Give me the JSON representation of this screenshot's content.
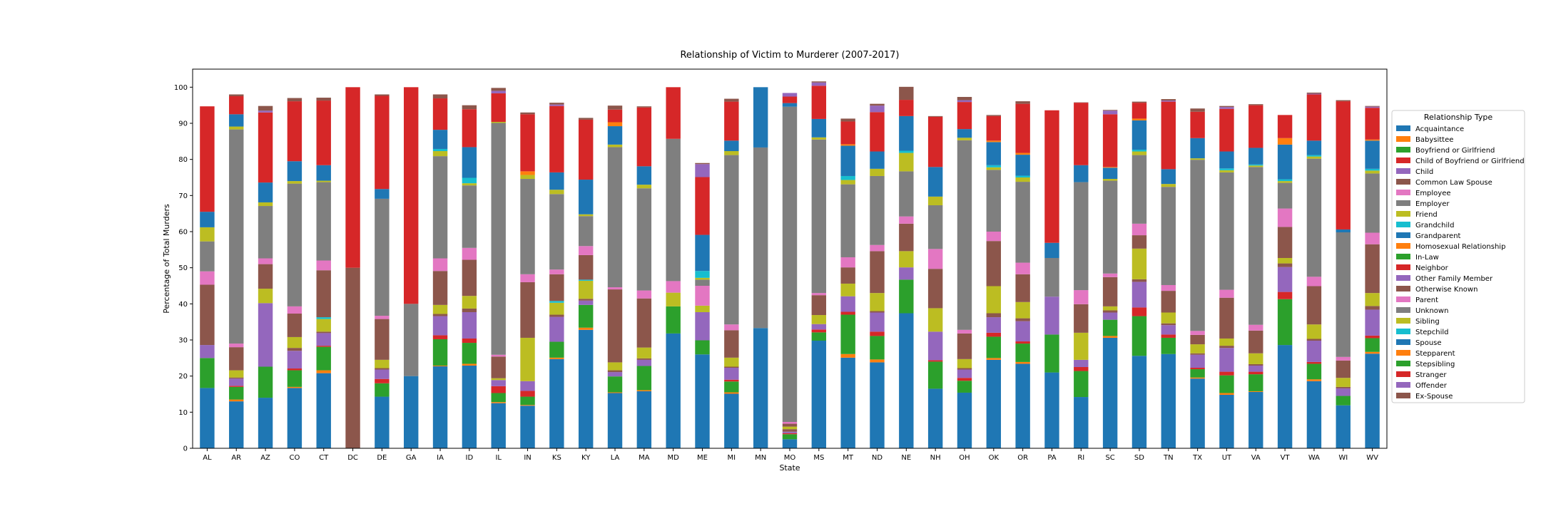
{
  "chart_data": {
    "type": "bar",
    "stacked": true,
    "title": "Relationship of Victim to Murderer (2007-2017)",
    "xlabel": "State",
    "ylabel": "Percentage of Total Murders",
    "ylim": [
      0,
      105
    ],
    "yticks": [
      0,
      10,
      20,
      30,
      40,
      50,
      60,
      70,
      80,
      90,
      100
    ],
    "grid": false,
    "legend": {
      "title": "Relationship Type",
      "placement": "right"
    },
    "categories": [
      "AL",
      "AR",
      "AZ",
      "CO",
      "CT",
      "DC",
      "DE",
      "GA",
      "IA",
      "ID",
      "IL",
      "IN",
      "KS",
      "KY",
      "LA",
      "MA",
      "MD",
      "ME",
      "MI",
      "MN",
      "MO",
      "MS",
      "MT",
      "ND",
      "NE",
      "NH",
      "OH",
      "OK",
      "OR",
      "PA",
      "RI",
      "SC",
      "SD",
      "TN",
      "TX",
      "UT",
      "VA",
      "VT",
      "WA",
      "WI",
      "WV"
    ],
    "series": [
      {
        "name": "Acquaintance",
        "color": "#1f77b4",
        "values": [
          16.7,
          13,
          14,
          16.7,
          20.8,
          0,
          14.3,
          20,
          22.7,
          22.9,
          12.5,
          11.8,
          24.7,
          32.8,
          15.3,
          15.8,
          31.8,
          26,
          15.1,
          33.3,
          2.5,
          29.8,
          25.1,
          23.8,
          37.4,
          16.5,
          15.4,
          24.5,
          23.4,
          21,
          14.2,
          30.6,
          25.6,
          26.1,
          19.3,
          14.8,
          15.6,
          28.6,
          18.6,
          11.9,
          26.2
        ]
      },
      {
        "name": "Babysittee",
        "color": "#ff7f0e",
        "values": [
          0,
          0.5,
          0,
          0.3,
          0.8,
          0,
          0,
          0,
          0.2,
          0.5,
          0.3,
          0.2,
          0.4,
          0.6,
          0.2,
          0.3,
          0,
          0,
          0.4,
          0,
          0,
          0,
          1,
          0.8,
          0,
          0,
          0,
          0.5,
          0.5,
          0,
          0,
          0.5,
          0,
          0,
          0.3,
          0.5,
          0.2,
          0,
          0.5,
          0,
          0.5
        ]
      },
      {
        "name": "Boyfriend or Girlfriend",
        "color": "#2ca02c",
        "values": [
          8.3,
          3.5,
          8.6,
          4.6,
          6.5,
          0,
          3.7,
          0,
          7.3,
          5.8,
          2.5,
          2.3,
          4.4,
          6.3,
          4.4,
          6.7,
          7.5,
          3.9,
          3,
          0,
          1.4,
          2.3,
          10.9,
          6.5,
          9.3,
          7.5,
          3.3,
          5.9,
          5.1,
          10.5,
          7.2,
          4.5,
          11,
          4.5,
          2.3,
          4.9,
          4.7,
          12.7,
          4.3,
          2.6,
          3.8
        ]
      },
      {
        "name": "Child of Boyfriend or Girlfriend",
        "color": "#d62728",
        "values": [
          0,
          0.3,
          0,
          0.5,
          0.3,
          0,
          1.2,
          0,
          1.1,
          1.2,
          1.9,
          1.6,
          0,
          0,
          0,
          0,
          0,
          0,
          0.5,
          0,
          0.3,
          0.8,
          0.8,
          1.2,
          0,
          0.4,
          0.8,
          1.1,
          0.6,
          0,
          1.1,
          0,
          2.4,
          0.9,
          0.4,
          1,
          0.7,
          2,
          0.5,
          0,
          0.7
        ]
      },
      {
        "name": "Child",
        "color": "#9467bd",
        "values": [
          3.6,
          2,
          17.6,
          4.9,
          3.5,
          0,
          2.6,
          0,
          5.3,
          7.3,
          1.7,
          2.7,
          6.9,
          1.2,
          1.2,
          1.7,
          0,
          7.8,
          3.3,
          0,
          0.4,
          1.5,
          4.3,
          5.3,
          3.4,
          7.9,
          2.3,
          4.3,
          5.6,
          10.5,
          2,
          2,
          7.1,
          2.6,
          3.6,
          6.6,
          1.7,
          6.9,
          5.9,
          2.1,
          7.2
        ]
      },
      {
        "name": "Common Law Spouse",
        "color": "#8c564b",
        "values": [
          0,
          0.3,
          0,
          0.8,
          0.4,
          0,
          0.4,
          0,
          0.6,
          1,
          0,
          0,
          0.6,
          0.5,
          0.5,
          0.4,
          0,
          0,
          0.3,
          0,
          0.7,
          0,
          0,
          0.4,
          0,
          0,
          0.4,
          1.1,
          0.8,
          0,
          0,
          0.6,
          0.7,
          0.5,
          0.4,
          0.6,
          0.4,
          1,
          0.5,
          0.4,
          1
        ]
      },
      {
        "name": "Employee",
        "color": "#e377c2",
        "values": [
          0,
          0,
          0,
          0,
          0,
          0,
          0,
          0,
          0,
          0,
          0,
          0,
          0,
          0,
          0,
          0,
          0,
          0,
          0,
          0,
          0,
          0,
          0,
          0,
          0,
          0,
          0,
          0,
          0,
          0,
          0,
          0,
          0,
          0,
          0,
          0,
          0,
          0,
          0,
          0,
          0
        ]
      },
      {
        "name": "Employer",
        "color": "#7f7f7f",
        "values": [
          0,
          0,
          0,
          0,
          0,
          0,
          0,
          0,
          0,
          0,
          0,
          0,
          0,
          0,
          0,
          0,
          0,
          0,
          0,
          0,
          0,
          0,
          0,
          0,
          0,
          0,
          0,
          0,
          0,
          0,
          0,
          0,
          0,
          0,
          0,
          0,
          0,
          0,
          0,
          0,
          0
        ]
      },
      {
        "name": "Friend",
        "color": "#bcbd22",
        "values": [
          0,
          2,
          4,
          3,
          3.5,
          0,
          2.3,
          0,
          2.5,
          3.5,
          0.5,
          12,
          3.3,
          5,
          2.2,
          3,
          3.8,
          1.8,
          2.5,
          0,
          0.7,
          2.5,
          3.5,
          5,
          4.5,
          6.5,
          2.5,
          7.5,
          4.5,
          0,
          7.5,
          1.1,
          8.5,
          3,
          2.5,
          2,
          3,
          1.5,
          4,
          2.5,
          3.6
        ]
      },
      {
        "name": "Grandchild",
        "color": "#17becf",
        "values": [
          0,
          0,
          0,
          0,
          0.5,
          0,
          0,
          0,
          0,
          0,
          0,
          0,
          0.5,
          0.3,
          0,
          0,
          0,
          0,
          0,
          0,
          0,
          0,
          0,
          0,
          0,
          0,
          0,
          0,
          0,
          0,
          0,
          0,
          0,
          0,
          0,
          0,
          0,
          0,
          0,
          0,
          0
        ]
      },
      {
        "name": "Grandparent",
        "color": "#1f77b4",
        "values": [
          0,
          0,
          0,
          0,
          0,
          0,
          0,
          0,
          0,
          0,
          0,
          0,
          0,
          0,
          0,
          0,
          0,
          0,
          0,
          0,
          0,
          0,
          0,
          0,
          0,
          0,
          0,
          0,
          0,
          0,
          0,
          0,
          0,
          0,
          0,
          0,
          0,
          0,
          0,
          0,
          0
        ]
      },
      {
        "name": "Homosexual Relationship",
        "color": "#ff7f0e",
        "values": [
          0,
          0,
          0,
          0,
          0,
          0,
          0,
          0,
          0,
          0,
          0,
          0,
          0,
          0,
          0,
          0,
          0,
          0,
          0,
          0,
          0,
          0,
          0,
          0,
          0,
          0,
          0,
          0,
          0,
          0,
          0,
          0,
          0,
          0,
          0,
          0,
          0,
          0,
          0,
          0,
          0
        ]
      },
      {
        "name": "In-Law",
        "color": "#2ca02c",
        "values": [
          0,
          0,
          0,
          0,
          0,
          0,
          0,
          0,
          0,
          0,
          0,
          0,
          0,
          0,
          0,
          0,
          0,
          0,
          0,
          0,
          0,
          0,
          0,
          0,
          0,
          0,
          0,
          0,
          0,
          0,
          0,
          0,
          0,
          0,
          0,
          0,
          0,
          0,
          0,
          0,
          0
        ]
      },
      {
        "name": "Neighbor",
        "color": "#d62728",
        "values": [
          0,
          0,
          0,
          0,
          0,
          0,
          0,
          0,
          0,
          0,
          0,
          0,
          0,
          0,
          0,
          0,
          0,
          0,
          0,
          0,
          0,
          0,
          0,
          0,
          0,
          0,
          0,
          0,
          0,
          0,
          0,
          0,
          0,
          0,
          0,
          0,
          0,
          0,
          0,
          0,
          0
        ]
      },
      {
        "name": "Other Family Member",
        "color": "#9467bd",
        "values": [
          0,
          0,
          0,
          0,
          0,
          0,
          0,
          0,
          0,
          0,
          0,
          0,
          0,
          0,
          0,
          0,
          0,
          0,
          0,
          0,
          0,
          0,
          0,
          0,
          0,
          0,
          0,
          0,
          0,
          0,
          0,
          0,
          0,
          0,
          0,
          0,
          0,
          0,
          0,
          0,
          0
        ]
      },
      {
        "name": "Otherwise Known",
        "color": "#8c564b",
        "values": [
          16.7,
          6.4,
          6.8,
          6.5,
          13,
          50,
          11.3,
          0,
          9.4,
          10,
          6,
          15.4,
          7.4,
          6.8,
          20.2,
          13.6,
          0,
          0,
          7.6,
          0,
          0.8,
          5.5,
          4.5,
          11.6,
          7.6,
          10.9,
          7.1,
          12.5,
          7.7,
          0,
          7.9,
          8.1,
          3.7,
          6,
          2.6,
          11.3,
          6.3,
          8.6,
          10.6,
          4.8,
          13.5
        ]
      },
      {
        "name": "Parent",
        "color": "#e377c2",
        "values": [
          3.7,
          1,
          1.6,
          2,
          2.7,
          0,
          0.9,
          0,
          3.5,
          3.3,
          0.5,
          2.2,
          1.3,
          2.5,
          0.6,
          2.2,
          3.2,
          5.5,
          1.6,
          0,
          0.5,
          0.6,
          2.8,
          1.7,
          2,
          5.5,
          1,
          2.6,
          3.2,
          0,
          3.9,
          1,
          3.2,
          1.6,
          1.1,
          2.2,
          1.6,
          5.1,
          2.6,
          1,
          3.2
        ]
      },
      {
        "name": "Unknown",
        "color": "#7f7f7f",
        "values": [
          8.3,
          59.3,
          14.5,
          34,
          21.7,
          0,
          32.4,
          20,
          28.3,
          17.3,
          64.2,
          26.4,
          20.9,
          8.3,
          38.8,
          28.3,
          39.4,
          1.7,
          46.9,
          50,
          87.3,
          42.5,
          20.2,
          19.1,
          12.5,
          12.1,
          52.5,
          17.1,
          22.4,
          10.7,
          29.9,
          25.7,
          19,
          27.2,
          47.4,
          32.5,
          43.7,
          7.1,
          32.7,
          34.5,
          16.4
        ]
      },
      {
        "name": "Sibling",
        "color": "#bcbd22",
        "values": [
          3.9,
          0.8,
          1,
          0.7,
          0.4,
          0,
          0,
          0,
          1.4,
          0.6,
          0.3,
          1.1,
          1.2,
          0.5,
          0.7,
          1,
          0,
          0.5,
          1.1,
          0,
          0,
          0.6,
          1.2,
          2,
          5.1,
          2.4,
          0.7,
          0.7,
          1.2,
          0,
          0,
          0.5,
          1,
          0.8,
          0.4,
          0.6,
          0.4,
          0.5,
          0.6,
          0,
          0.8
        ]
      },
      {
        "name": "Stepchild",
        "color": "#17becf",
        "values": [
          0,
          0,
          0,
          0,
          0,
          0,
          0,
          0,
          0.6,
          1.5,
          0,
          0,
          0,
          0,
          0,
          0,
          0,
          1.9,
          0,
          0,
          0,
          0,
          1.1,
          0,
          0.6,
          0,
          0,
          0.6,
          0.5,
          0,
          0,
          0,
          0.5,
          0,
          0,
          0.5,
          0.3,
          0.5,
          0.4,
          0,
          0.5
        ]
      },
      {
        "name": "Spouse",
        "color": "#1f77b4",
        "values": [
          4.3,
          3.4,
          5.5,
          5.5,
          4.3,
          0,
          2.7,
          0,
          5.3,
          8.5,
          0,
          0,
          4.8,
          9.6,
          5.1,
          5.1,
          0,
          10,
          2.9,
          16.7,
          1,
          5.1,
          8.4,
          4.8,
          9.6,
          8.2,
          2.4,
          6.4,
          5.8,
          4.2,
          4.7,
          3.1,
          8.1,
          4.1,
          5.6,
          4.7,
          4.6,
          9.6,
          4,
          0.8,
          7.8
        ]
      },
      {
        "name": "Stepparent",
        "color": "#ff7f0e",
        "values": [
          0,
          0,
          0,
          0,
          0,
          0,
          0,
          0,
          0,
          0,
          0,
          1,
          0,
          0,
          1.1,
          0,
          0,
          0,
          0,
          0,
          0,
          0,
          0.4,
          0,
          0,
          0,
          0,
          0.4,
          0.5,
          0,
          0,
          0.2,
          0.5,
          0,
          0,
          0,
          0,
          1.8,
          0,
          0,
          0.3
        ]
      },
      {
        "name": "Stepsibling",
        "color": "#2ca02c",
        "values": [
          0,
          0,
          0,
          0,
          0,
          0,
          0,
          0,
          0,
          0,
          0,
          0,
          0,
          0,
          0,
          0,
          0,
          0,
          0,
          0,
          0,
          0,
          0,
          0,
          0,
          0,
          0,
          0,
          0,
          0,
          0,
          0,
          0,
          0,
          0,
          0,
          0,
          0,
          0,
          0,
          0
        ]
      },
      {
        "name": "Stranger",
        "color": "#d62728",
        "values": [
          29.2,
          5,
          19.4,
          16.6,
          17.9,
          50,
          25.8,
          60,
          8.7,
          10.5,
          7.9,
          15.8,
          18.4,
          16.6,
          3.5,
          16.3,
          14.3,
          16,
          10.8,
          0,
          1.8,
          9.2,
          6.3,
          10.9,
          4.5,
          13.9,
          7.5,
          6.8,
          13.6,
          36.7,
          17.3,
          14.6,
          4.4,
          18.7,
          7.3,
          11.8,
          11.8,
          6.4,
          12.8,
          35.5,
          8.8
        ]
      },
      {
        "name": "Offender",
        "color": "#9467bd",
        "values": [
          0,
          0,
          0.5,
          0,
          0,
          0,
          0,
          0,
          0,
          0,
          0.7,
          0,
          0.4,
          0,
          0,
          0,
          0,
          3.6,
          0,
          0,
          1,
          0.9,
          0,
          1.8,
          0,
          0,
          0.5,
          0,
          0,
          0,
          0,
          1,
          0,
          0.3,
          0,
          0.5,
          0,
          0,
          0.2,
          0,
          0.3
        ]
      },
      {
        "name": "Ex-Spouse",
        "color": "#8c564b",
        "values": [
          0,
          0.5,
          1.3,
          0.9,
          0.8,
          0,
          0.4,
          0,
          1.1,
          1.1,
          0.8,
          0.5,
          0.5,
          0.5,
          1.1,
          0.3,
          0,
          0.3,
          0.8,
          0,
          0,
          0.3,
          0.8,
          0.5,
          3.6,
          0.2,
          0.9,
          0.3,
          0.7,
          0,
          0.1,
          0.2,
          0.3,
          0.4,
          0.9,
          0.3,
          0.3,
          0,
          0.3,
          0.3,
          0.2
        ]
      }
    ]
  }
}
